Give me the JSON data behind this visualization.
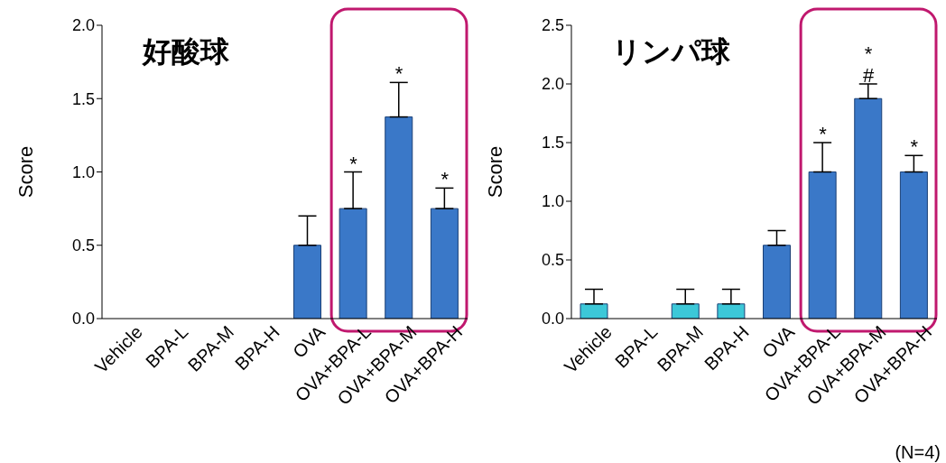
{
  "chart_data": [
    {
      "type": "bar",
      "title": "好酸球",
      "ylabel": "Score",
      "categories": [
        "Vehicle",
        "BPA-L",
        "BPA-M",
        "BPA-H",
        "OVA",
        "OVA+BPA-L",
        "OVA+BPA-M",
        "OVA+BPA-H"
      ],
      "values": [
        0,
        0,
        0,
        0,
        0.5,
        0.75,
        1.375,
        0.75
      ],
      "errors": [
        null,
        null,
        null,
        null,
        [
          0.5,
          0.7
        ],
        [
          0.75,
          1.0
        ],
        [
          1.375,
          1.61
        ],
        [
          0.75,
          0.89
        ]
      ],
      "colors": [
        "#3a78c8",
        "#3a78c8",
        "#3a78c8",
        "#3a78c8",
        "#3a78c8",
        "#3a78c8",
        "#3a78c8",
        "#3a78c8"
      ],
      "ylim": [
        0,
        2
      ],
      "yticks": [
        {
          "value": 0,
          "label": "0.0"
        },
        {
          "value": 0.5,
          "label": "0.5"
        },
        {
          "value": 1,
          "label": "1.0"
        },
        {
          "value": 1.5,
          "label": "1.5"
        },
        {
          "value": 2,
          "label": "2.0"
        }
      ],
      "value_labels": [
        null,
        null,
        null,
        null,
        null,
        "*",
        "*",
        "*"
      ],
      "grid": false,
      "legend": false
    },
    {
      "type": "bar",
      "title": "リンパ球",
      "ylabel": "Score",
      "categories": [
        "Vehicle",
        "BPA-L",
        "BPA-M",
        "BPA-H",
        "OVA",
        "OVA+BPA-L",
        "OVA+BPA-M",
        "OVA+BPA-H"
      ],
      "values": [
        0.125,
        0,
        0.125,
        0.125,
        0.625,
        1.25,
        1.875,
        1.25
      ],
      "errors": [
        [
          0.125,
          0.25
        ],
        null,
        [
          0.125,
          0.25
        ],
        [
          0.125,
          0.25
        ],
        [
          0.625,
          0.75
        ],
        [
          1.25,
          1.5
        ],
        [
          1.875,
          2.0
        ],
        [
          1.25,
          1.39
        ]
      ],
      "colors": [
        "#3cc8d8",
        "#3cc8d8",
        "#3cc8d8",
        "#3cc8d8",
        "#3a78c8",
        "#3a78c8",
        "#3a78c8",
        "#3a78c8"
      ],
      "ylim": [
        0,
        2.5
      ],
      "yticks": [
        {
          "value": 0,
          "label": "0.0"
        },
        {
          "value": 0.5,
          "label": "0.5"
        },
        {
          "value": 1,
          "label": "1.0"
        },
        {
          "value": 1.5,
          "label": "1.5"
        },
        {
          "value": 2,
          "label": "2.0"
        },
        {
          "value": 2.5,
          "label": "2.5"
        }
      ],
      "value_labels": [
        null,
        null,
        null,
        null,
        null,
        "*",
        "*\n#",
        "*"
      ],
      "annotations": [
        "(N=4)"
      ],
      "grid": false,
      "legend": false
    }
  ]
}
